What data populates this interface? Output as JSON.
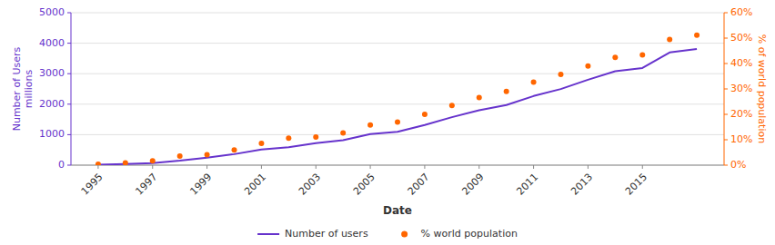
{
  "chart_data": {
    "type": "line",
    "x": [
      1995,
      1996,
      1997,
      1998,
      1999,
      2000,
      2001,
      2002,
      2003,
      2004,
      2005,
      2006,
      2007,
      2008,
      2009,
      2010,
      2011,
      2012,
      2013,
      2014,
      2015,
      2016,
      2017
    ],
    "xlabel": "Date",
    "ylabel": "Number of Users\nmillions",
    "y2label": "% of world population",
    "xlim": [
      1994,
      2018
    ],
    "xticks": [
      1995,
      1997,
      1999,
      2001,
      2003,
      2005,
      2007,
      2009,
      2011,
      2013,
      2015
    ],
    "ylim": [
      0,
      5000
    ],
    "yticks": [
      0,
      1000,
      2000,
      3000,
      4000,
      5000
    ],
    "y2lim": [
      0,
      60
    ],
    "y2ticks": [
      {
        "value": 0,
        "label": "0%"
      },
      {
        "value": 10,
        "label": "10%"
      },
      {
        "value": 20,
        "label": "20%"
      },
      {
        "value": 30,
        "label": "30%"
      },
      {
        "value": 40,
        "label": "40%"
      },
      {
        "value": 50,
        "label": "50%"
      },
      {
        "value": 60,
        "label": "60%"
      }
    ],
    "grid": true,
    "legend": "bottom",
    "series": [
      {
        "name": "Number of users",
        "type": "line",
        "color": "#6633cc",
        "values": [
          16,
          36,
          70,
          147,
          248,
          361,
          513,
          587,
          719,
          817,
          1018,
          1093,
          1319,
          1574,
          1802,
          1971,
          2267,
          2497,
          2802,
          3079,
          3185,
          3696,
          3812
        ]
      },
      {
        "name": "% world population",
        "type": "scatter",
        "color": "#ff6600",
        "axis": "y2",
        "marker": "circle",
        "values": [
          0.4,
          0.9,
          1.7,
          3.6,
          4.1,
          6.0,
          8.6,
          10.6,
          11.1,
          12.7,
          15.8,
          17.0,
          20.0,
          23.5,
          26.6,
          29.0,
          32.7,
          35.7,
          39.0,
          42.4,
          43.4,
          49.5,
          51.2
        ]
      }
    ]
  }
}
